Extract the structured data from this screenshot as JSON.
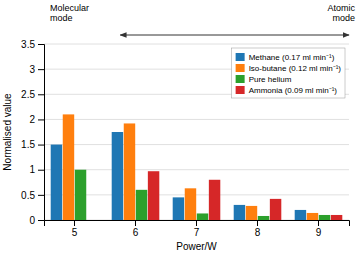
{
  "chart_data": {
    "type": "bar",
    "categories": [
      5,
      6,
      7,
      8,
      9
    ],
    "series": [
      {
        "name": "Methane (0.17 ml min⁻¹)",
        "values": [
          1.5,
          1.75,
          0.45,
          0.3,
          0.2
        ]
      },
      {
        "name": "Iso-butane (0.12 ml min⁻¹)",
        "values": [
          2.1,
          1.92,
          0.63,
          0.28,
          0.14
        ]
      },
      {
        "name": "Pure helium",
        "values": [
          1.0,
          0.6,
          0.13,
          0.08,
          0.1
        ]
      },
      {
        "name": "Ammonia (0.09 ml min⁻¹)",
        "values": [
          0.0,
          0.97,
          0.8,
          0.42,
          0.1
        ]
      }
    ],
    "xlabel": "Power/W",
    "ylabel": "Normalised value",
    "ylim": [
      0,
      3.5
    ],
    "yticks": [
      0,
      0.5,
      1,
      1.5,
      2,
      2.5,
      3,
      3.5
    ],
    "annotations": [
      "Molecular\nmode",
      "Atomic\nmode"
    ],
    "grid": true,
    "legend": "upper right"
  }
}
